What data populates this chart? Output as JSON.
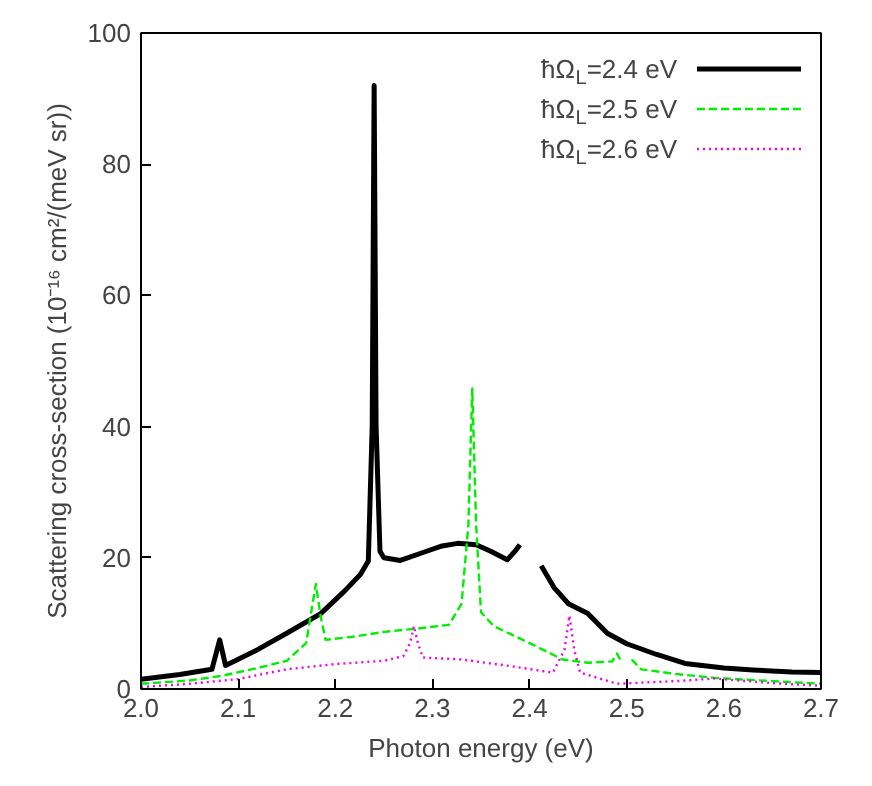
{
  "chart_data": {
    "type": "line",
    "xlabel": "Photon energy (eV)",
    "ylabel": "Scattering cross-section (10⁻¹⁶ cm²/(meV sr))",
    "xlim": [
      2.0,
      2.7
    ],
    "ylim": [
      0,
      100
    ],
    "xticks": [
      {
        "value": 2.0,
        "label": "2.0"
      },
      2.1,
      2.2,
      2.3,
      2.4,
      2.5,
      2.6,
      2.7
    ],
    "yticks": [
      0,
      20,
      40,
      60,
      80,
      100
    ],
    "grid": false,
    "legend": "top right",
    "series": [
      {
        "name": "ħΩ$_{L}$=2.4 eV",
        "color": "#000000",
        "line_style": "solid",
        "x": [
          2.0,
          2.04,
          2.073,
          2.081,
          2.087,
          2.12,
          2.15,
          2.185,
          2.21,
          2.226,
          2.234,
          2.238,
          2.24,
          2.242,
          2.246,
          2.25,
          2.267,
          2.294,
          2.31,
          2.326,
          2.345,
          2.36,
          2.377,
          2.385,
          2.39,
          2.4,
          2.412,
          2.425,
          2.44,
          2.46,
          2.48,
          2.5,
          2.53,
          2.56,
          2.6,
          2.63,
          2.67,
          2.7
        ],
        "values": [
          1.5,
          2.2,
          3,
          7.5,
          3.6,
          6,
          8.5,
          11.5,
          15,
          17.5,
          19.5,
          40,
          92,
          40,
          21,
          20,
          19.6,
          21,
          21.8,
          22.2,
          22,
          21,
          19.7,
          21,
          22,
          null,
          18.8,
          15.5,
          13,
          11.5,
          8.5,
          6.9,
          5.3,
          3.9,
          3.2,
          2.9,
          2.6,
          2.5
        ]
      },
      {
        "name": "ħΩ$_{L}$=2.5 eV",
        "color": "#00ee00",
        "line_style": "dashed",
        "x": [
          2.0,
          2.05,
          2.083,
          2.12,
          2.15,
          2.17,
          2.175,
          2.18,
          2.185,
          2.19,
          2.22,
          2.25,
          2.29,
          2.317,
          2.33,
          2.337,
          2.341,
          2.345,
          2.35,
          2.363,
          2.4,
          2.434,
          2.46,
          2.485,
          2.49,
          2.495,
          2.5,
          2.505,
          2.515,
          2.55,
          2.59,
          2.65,
          2.7
        ],
        "values": [
          0.8,
          1.3,
          2,
          3.2,
          4.3,
          7,
          11.5,
          16,
          11,
          7.5,
          8,
          8.7,
          9.3,
          9.8,
          13,
          25,
          45.8,
          25,
          11.7,
          9.6,
          7,
          4.5,
          4,
          4.2,
          5.4,
          4,
          null,
          4.5,
          3,
          2.3,
          1.7,
          1.2,
          0.8
        ]
      },
      {
        "name": "ħΩ$_{L}$=2.6 eV",
        "color": "#ee00ee",
        "line_style": "dotted",
        "x": [
          2.0,
          2.05,
          2.1,
          2.116,
          2.15,
          2.2,
          2.25,
          2.27,
          2.277,
          2.281,
          2.285,
          2.29,
          2.33,
          2.38,
          2.424,
          2.436,
          2.441,
          2.446,
          2.452,
          2.49,
          2.55,
          2.59,
          2.65,
          2.7
        ],
        "values": [
          0.3,
          0.8,
          1.5,
          2,
          3,
          3.8,
          4.3,
          5,
          7,
          9.6,
          7,
          4.8,
          4.5,
          3.5,
          2.5,
          6,
          11.2,
          6,
          2.5,
          0.8,
          1.2,
          1.6,
          0.9,
          0.5
        ]
      }
    ]
  }
}
